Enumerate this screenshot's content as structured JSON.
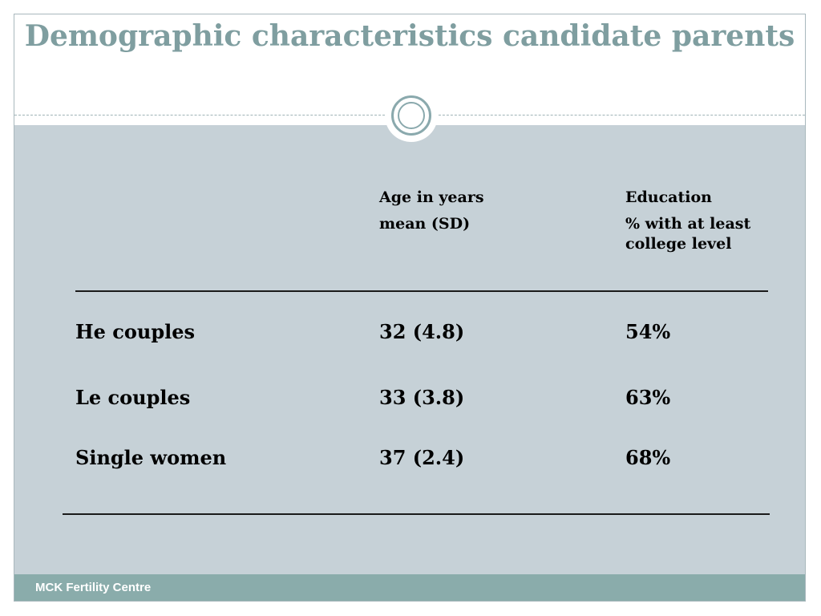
{
  "slide": {
    "title": "Demographic characteristics candidate parents",
    "footer": "MCK Fertility Centre"
  },
  "table": {
    "headers": {
      "age_line1": "Age in years",
      "age_line2": "mean (SD)",
      "edu_line1": "Education",
      "edu_line2": "% with at least college level"
    },
    "rows": [
      {
        "group": "He couples",
        "age": "32 (4.8)",
        "education": "54%"
      },
      {
        "group": "Le couples",
        "age": "33 (3.8)",
        "education": "63%"
      },
      {
        "group": "Single women",
        "age": "37 (2.4)",
        "education": "68%"
      }
    ]
  }
}
